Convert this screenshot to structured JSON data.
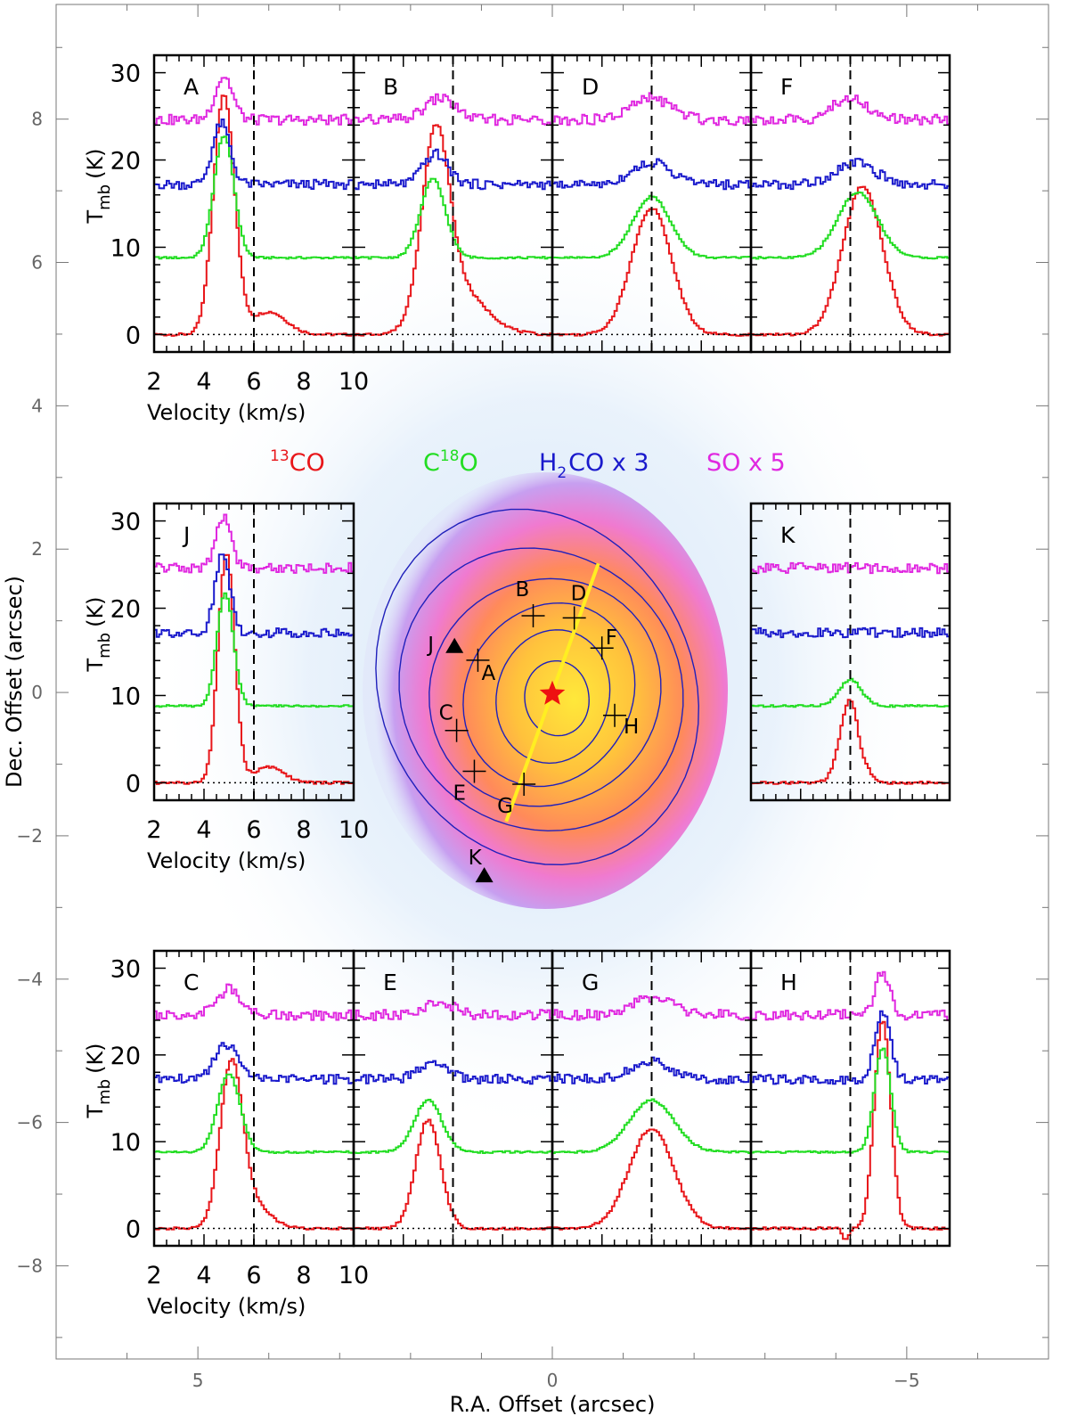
{
  "chart_data": {
    "type": "line",
    "description_axes": {
      "xlabel": "R.A. Offset (arcsec)",
      "ylabel": "Dec. Offset (arcsec)",
      "xlim": [
        7.0,
        -7.0
      ],
      "ylim": [
        -9.3,
        9.6
      ],
      "x_ticks": [
        5,
        0,
        -5
      ],
      "y_ticks": [
        8,
        6,
        4,
        2,
        0,
        -2,
        -4,
        -6,
        -8
      ]
    },
    "legend": [
      {
        "key": "13co",
        "label_sup": "13",
        "label": "CO",
        "color": "#e8161a"
      },
      {
        "key": "c18o",
        "label_pre": "C",
        "label_sup": "18",
        "label": "O",
        "color": "#22dd22"
      },
      {
        "key": "h2co",
        "label_pre": "H",
        "label_sub": "2",
        "label": "CO x 3",
        "color": "#1a1acc"
      },
      {
        "key": "so",
        "label": "SO x 5",
        "color": "#e028e0"
      }
    ],
    "spectra_axes": {
      "xlabel": "Velocity (km/s)",
      "ylabel": "T",
      "ylabel_sub": "mb",
      "ylabel_unit": "(K)",
      "xlim": [
        2,
        10
      ],
      "ylim": [
        -2,
        32
      ],
      "x_ticks": [
        2,
        4,
        6,
        8,
        10
      ],
      "y_ticks": [
        0,
        10,
        20,
        30
      ],
      "systemic_velocity": 6.0
    },
    "spectra": [
      {
        "label": "A",
        "co13": {
          "amp": 27.5,
          "v": 4.8,
          "w": 0.42,
          "wing_amp": 2.6,
          "wing_v": 6.6,
          "wing_w": 0.7
        },
        "c18o": {
          "amp": 14,
          "v": 4.8,
          "w": 0.4
        },
        "h2co": {
          "amp": 7,
          "v": 4.7,
          "w": 0.35
        },
        "so": {
          "amp": 5,
          "v": 4.8,
          "w": 0.35
        }
      },
      {
        "label": "B",
        "co13": {
          "amp": 20.5,
          "v": 5.3,
          "w": 0.55,
          "wing_amp": 5,
          "wing_v": 6.2,
          "wing_w": 1.1
        },
        "c18o": {
          "amp": 9,
          "v": 5.2,
          "w": 0.5
        },
        "h2co": {
          "amp": 3.5,
          "v": 5.3,
          "w": 0.5
        },
        "so": {
          "amp": 2.5,
          "v": 5.5,
          "w": 0.6
        }
      },
      {
        "label": "D",
        "co13": {
          "amp": 14.5,
          "v": 6.0,
          "w": 0.8
        },
        "c18o": {
          "amp": 7,
          "v": 6.0,
          "w": 0.75
        },
        "h2co": {
          "amp": 2.5,
          "v": 6.0,
          "w": 0.8
        },
        "so": {
          "amp": 2.5,
          "v": 6.0,
          "w": 0.8
        }
      },
      {
        "label": "F",
        "co13": {
          "amp": 17,
          "v": 6.5,
          "w": 0.8
        },
        "c18o": {
          "amp": 7.5,
          "v": 6.3,
          "w": 0.8
        },
        "h2co": {
          "amp": 2.5,
          "v": 6.2,
          "w": 0.8
        },
        "so": {
          "amp": 2.5,
          "v": 6.0,
          "w": 0.7
        }
      },
      {
        "label": "J",
        "co13": {
          "amp": 26.5,
          "v": 4.9,
          "w": 0.33,
          "wing_amp": 1.8,
          "wing_v": 6.6,
          "wing_w": 0.6
        },
        "c18o": {
          "amp": 13,
          "v": 4.85,
          "w": 0.33
        },
        "h2co": {
          "amp": 9,
          "v": 4.75,
          "w": 0.3
        },
        "so": {
          "amp": 6,
          "v": 4.8,
          "w": 0.3
        }
      },
      {
        "label": "K",
        "co13": {
          "amp": 9.5,
          "v": 6.0,
          "w": 0.4,
          "dip_amp": -1.2,
          "dip_v": 6.4,
          "dip_w": 0.15
        },
        "c18o": {
          "amp": 3,
          "v": 6.0,
          "w": 0.45
        },
        "h2co": {
          "amp": 0,
          "v": 6.0,
          "w": 0.5
        },
        "so": {
          "amp": 0,
          "v": 6.0,
          "w": 0.5
        }
      },
      {
        "label": "C",
        "co13": {
          "amp": 19,
          "v": 5.1,
          "w": 0.45,
          "wing_amp": 2.5,
          "wing_v": 6.1,
          "wing_w": 0.6
        },
        "c18o": {
          "amp": 9,
          "v": 5.0,
          "w": 0.45
        },
        "h2co": {
          "amp": 4,
          "v": 4.9,
          "w": 0.45
        },
        "so": {
          "amp": 3,
          "v": 5.0,
          "w": 0.45
        }
      },
      {
        "label": "E",
        "co13": {
          "amp": 12.5,
          "v": 5.0,
          "w": 0.5
        },
        "c18o": {
          "amp": 6,
          "v": 5.0,
          "w": 0.55
        },
        "h2co": {
          "amp": 2,
          "v": 5.2,
          "w": 0.55
        },
        "so": {
          "amp": 1.5,
          "v": 5.4,
          "w": 0.6
        }
      },
      {
        "label": "G",
        "co13": {
          "amp": 11.5,
          "v": 6.0,
          "w": 0.9
        },
        "c18o": {
          "amp": 6,
          "v": 6.0,
          "w": 0.9
        },
        "h2co": {
          "amp": 2,
          "v": 6.0,
          "w": 0.8
        },
        "so": {
          "amp": 2,
          "v": 6.0,
          "w": 0.8
        }
      },
      {
        "label": "H",
        "co13": {
          "amp": 24,
          "v": 7.3,
          "w": 0.33,
          "dip_amp": -1.4,
          "dip_v": 5.8,
          "dip_w": 0.12
        },
        "c18o": {
          "amp": 12,
          "v": 7.3,
          "w": 0.33
        },
        "h2co": {
          "amp": 8,
          "v": 7.3,
          "w": 0.3
        },
        "so": {
          "amp": 5,
          "v": 7.3,
          "w": 0.3
        }
      }
    ],
    "map": {
      "jet_line": {
        "from": [
          0.65,
          -1.8
        ],
        "to": [
          -0.65,
          1.8
        ]
      },
      "star": {
        "x": 0.0,
        "y": -0.02
      },
      "crosses": [
        {
          "label": "A",
          "x": 1.05,
          "y": 0.45
        },
        {
          "label": "B",
          "x": 0.27,
          "y": 1.07
        },
        {
          "label": "D",
          "x": -0.31,
          "y": 1.04
        },
        {
          "label": "F",
          "x": -0.7,
          "y": 0.62
        },
        {
          "label": "C",
          "x": 1.35,
          "y": -0.53
        },
        {
          "label": "E",
          "x": 1.1,
          "y": -1.1
        },
        {
          "label": "G",
          "x": 0.4,
          "y": -1.28
        },
        {
          "label": "H",
          "x": -0.88,
          "y": -0.32
        }
      ],
      "triangles": [
        {
          "label": "J",
          "x": 1.38,
          "y": 0.65
        },
        {
          "label": "K",
          "x": 0.96,
          "y": -2.55
        }
      ],
      "contour_levels": 6
    },
    "colors": {
      "co13": "#e8161a",
      "c18o": "#22dd22",
      "h2co": "#1a1acc",
      "so": "#e028e0",
      "jet": "#ffee22",
      "star": "#ee1111",
      "contour": "#2020bb"
    }
  }
}
